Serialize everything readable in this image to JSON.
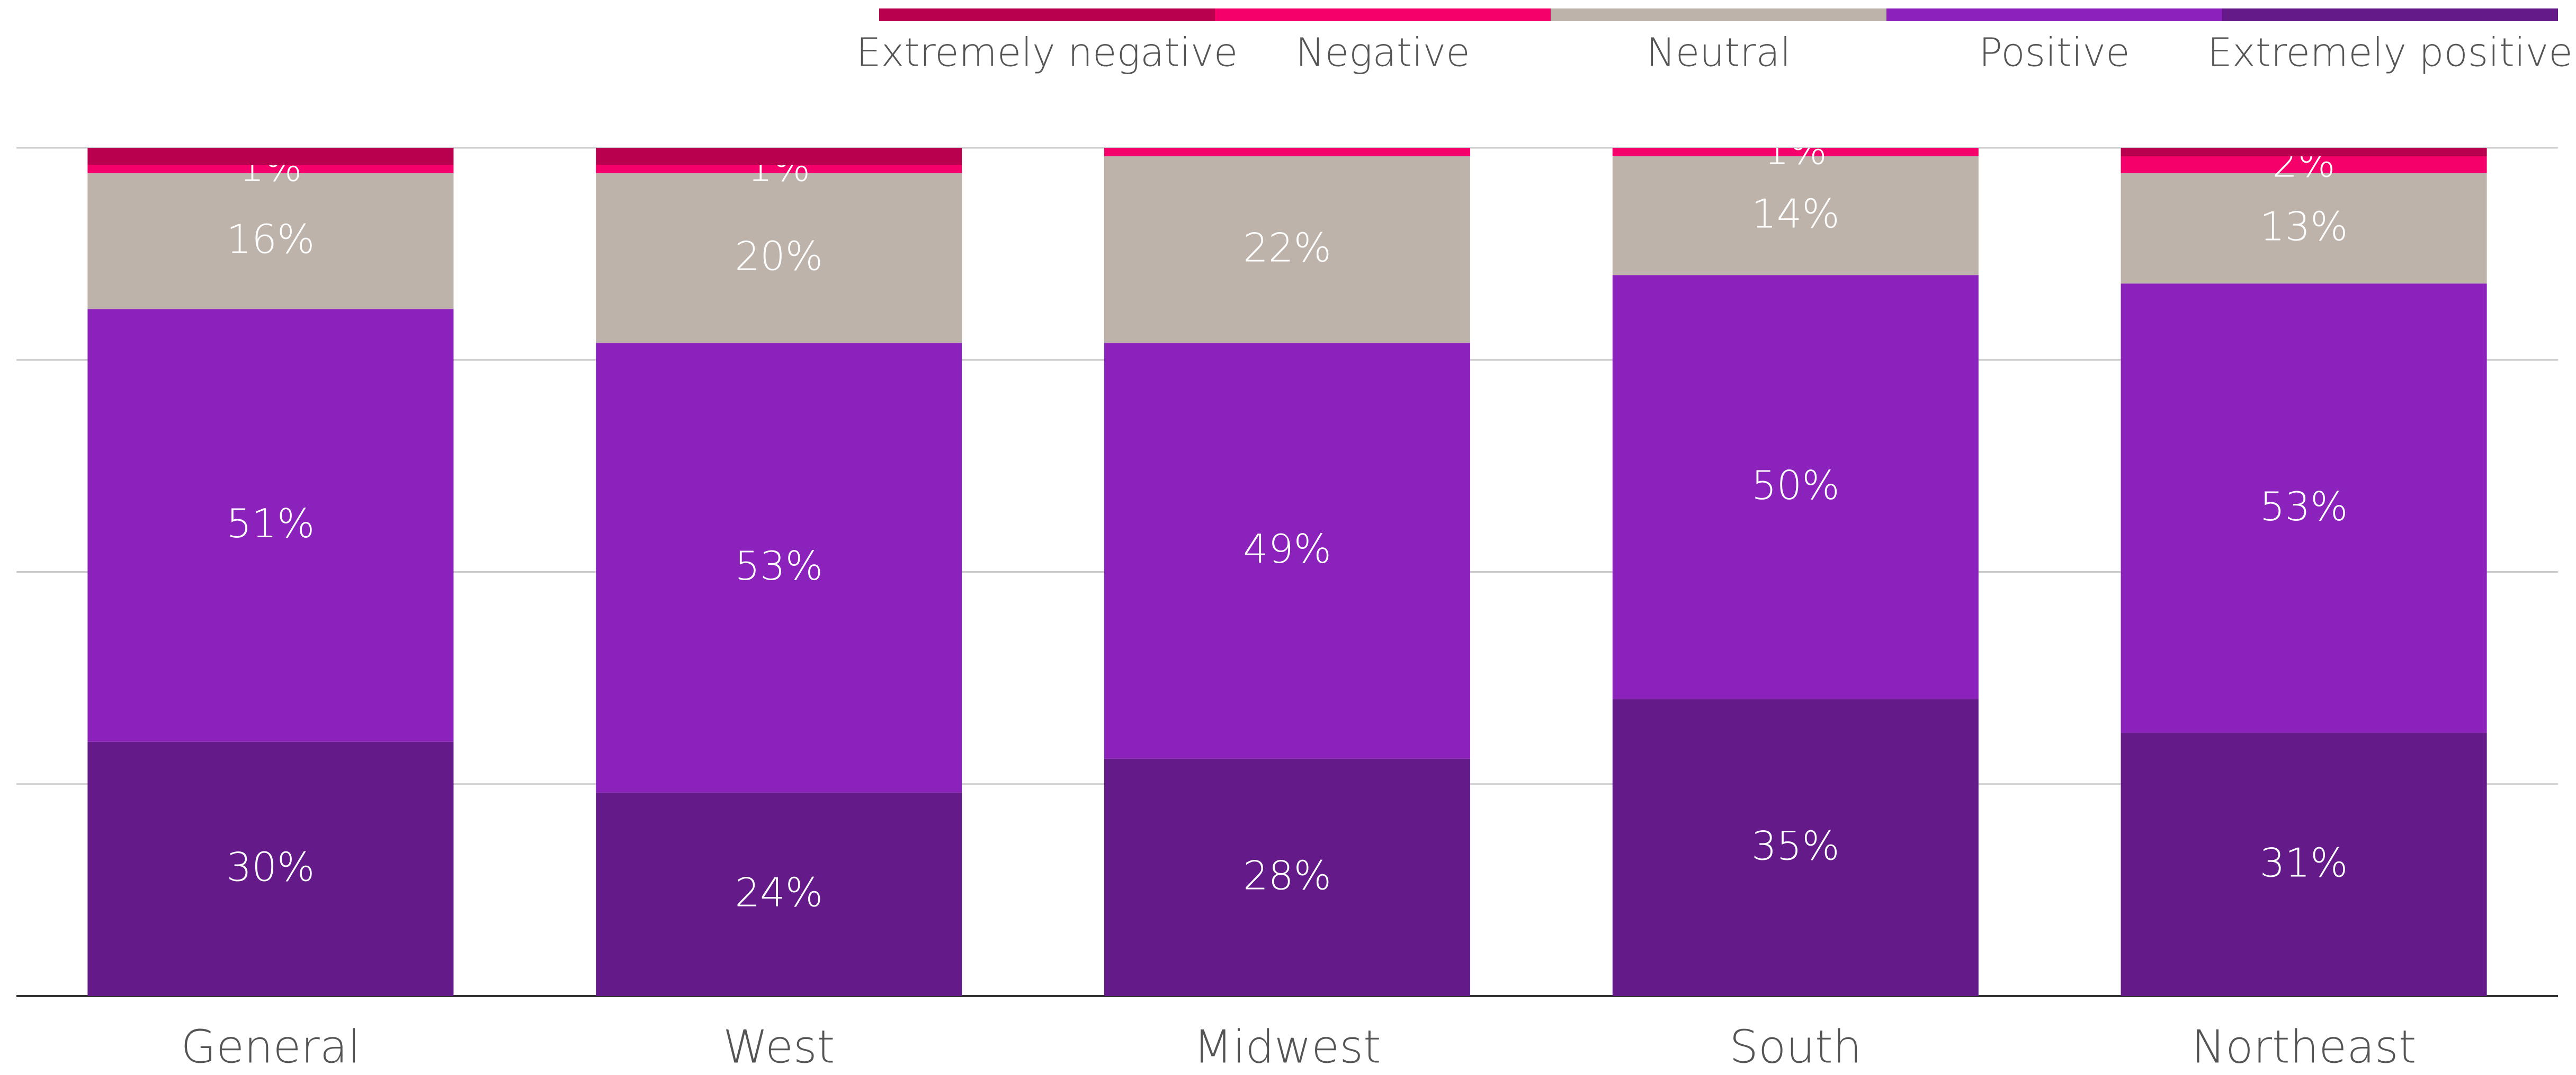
{
  "chart_data": {
    "type": "stacked_bar",
    "categories": [
      "General",
      "West",
      "Midwest",
      "South",
      "Northeast"
    ],
    "series": [
      {
        "name": "Extremely positive",
        "color": "#641a88",
        "values": [
          30,
          24,
          28,
          35,
          31
        ],
        "value_labels": [
          "30%",
          "24%",
          "28%",
          "35%",
          "31%"
        ]
      },
      {
        "name": "Positive",
        "color": "#8a22bb",
        "values": [
          51,
          53,
          49,
          50,
          53
        ],
        "value_labels": [
          "51%",
          "53%",
          "49%",
          "50%",
          "53%"
        ]
      },
      {
        "name": "Neutral",
        "color": "#bdb3aa",
        "values": [
          16,
          20,
          22,
          14,
          13
        ],
        "value_labels": [
          "16%",
          "20%",
          "22%",
          "14%",
          "13%"
        ]
      },
      {
        "name": "Negative",
        "color": "#f5006a",
        "values": [
          1,
          1,
          1,
          1,
          2
        ],
        "value_labels": [
          "1%",
          "1%",
          null,
          "1%",
          "2%"
        ]
      },
      {
        "name": "Extremely negative",
        "color": "#b8004e",
        "values": [
          2,
          2,
          0,
          1,
          1
        ]
      }
    ],
    "legend_order": [
      4,
      3,
      2,
      1,
      0
    ],
    "ylim": [
      0,
      100
    ],
    "yticks": [
      0,
      25,
      50,
      75,
      100
    ],
    "grid": true
  }
}
